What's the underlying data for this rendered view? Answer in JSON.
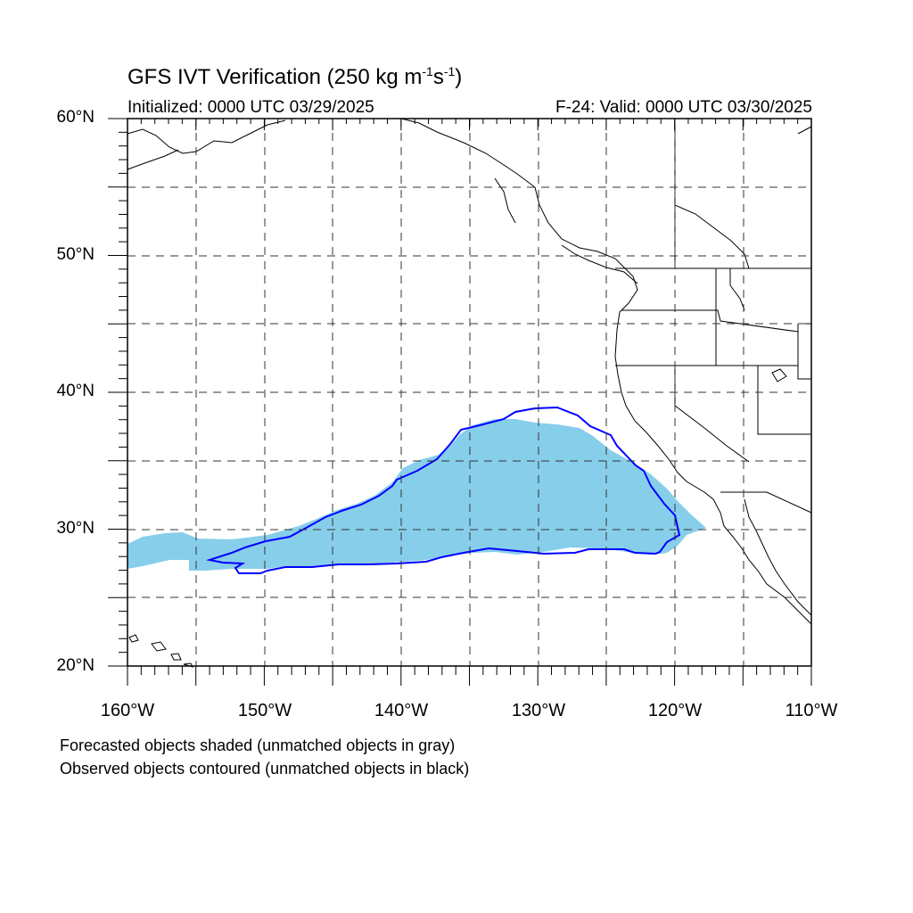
{
  "title": {
    "main": "GFS IVT Verification (250 kg m",
    "exp1": "-1",
    "mid": "s",
    "exp2": "-1",
    "end": ")"
  },
  "initialized": "Initialized: 0000 UTC 03/29/2025",
  "valid": "F-24: Valid: 0000 UTC 03/30/2025",
  "lat_labels": [
    "60°N",
    "50°N",
    "40°N",
    "30°N",
    "20°N"
  ],
  "lon_labels": [
    "160°W",
    "150°W",
    "140°W",
    "130°W",
    "120°W",
    "110°W"
  ],
  "legend": {
    "line1": "Forecasted objects shaded (unmatched objects in gray)",
    "line2": "Observed objects contoured (unmatched objects in black)"
  },
  "colors": {
    "forecast_fill": "#87ceeb",
    "observed_contour": "#0000ff",
    "coastline": "#000000",
    "grid": "#000000"
  },
  "map_extent": {
    "lon": [
      -160,
      -110
    ],
    "lat": [
      20,
      60
    ]
  }
}
